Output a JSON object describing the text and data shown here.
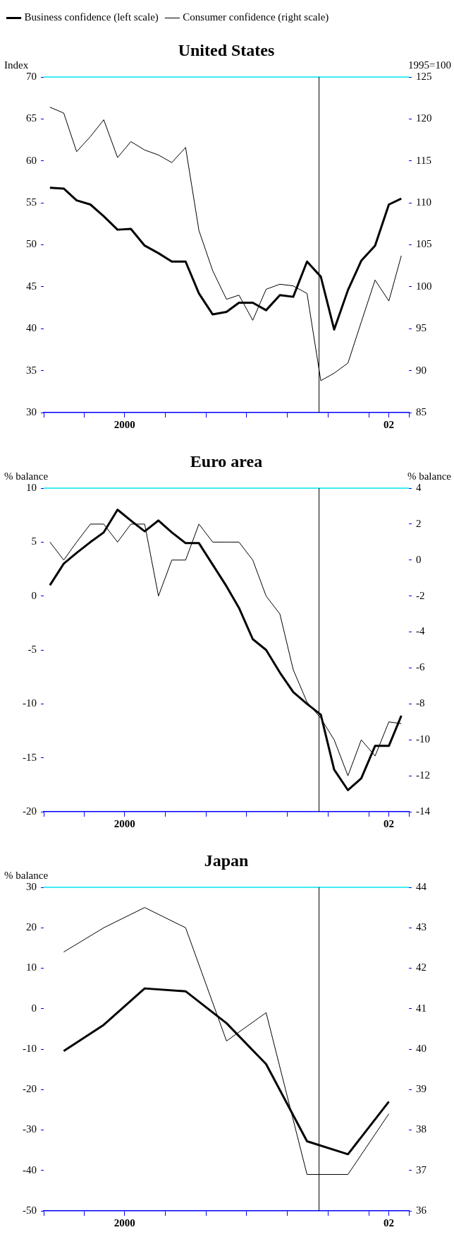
{
  "chart_data": [
    {
      "type": "line",
      "title": "United States",
      "ylabel": "Index",
      "y2label": "1995=100",
      "legend": "top",
      "x": [
        "2000-01-15",
        "2000-02-15",
        "2000-03-15",
        "2000-04-15",
        "2000-05-15",
        "2000-06-15",
        "2000-07-15",
        "2000-08-15",
        "2000-09-15",
        "2000-10-15",
        "2000-11-15",
        "2000-12-15",
        "2001-01-15",
        "2001-02-15",
        "2001-03-15",
        "2001-04-15",
        "2001-05-15",
        "2001-06-15",
        "2001-07-15",
        "2001-08-15",
        "2001-09-15",
        "2001-10-15",
        "2001-11-15",
        "2001-12-15",
        "2002-01-15",
        "2002-02-15",
        "2002-03-15"
      ],
      "xlim": [
        "2000-01",
        "2002-04"
      ],
      "xticks": [
        {
          "value": "2000-01",
          "label": null
        },
        {
          "value": "2000-04",
          "label": null
        },
        {
          "value": "2000-07",
          "label": "2000"
        },
        {
          "value": "2000-10",
          "label": null
        },
        {
          "value": "2001-01",
          "label": null
        },
        {
          "value": "2001-04",
          "label": null
        },
        {
          "value": "2001-07",
          "label": null
        },
        {
          "value": "2001-10",
          "label": null
        },
        {
          "value": "2002-01",
          "label": null
        },
        {
          "value": "2002-02-15",
          "label": "02"
        },
        {
          "value": "2002-04",
          "label": null
        }
      ],
      "ylim": [
        30,
        70
      ],
      "yticks": [
        30,
        35,
        40,
        45,
        50,
        55,
        60,
        65,
        70
      ],
      "y2lim": [
        85,
        125
      ],
      "y2ticks": [
        85,
        90,
        95,
        100,
        105,
        110,
        115,
        120,
        125
      ],
      "ref_lines": [
        {
          "axis": "x",
          "value": "2001-09-11",
          "color": "#000000"
        }
      ],
      "series": [
        {
          "name": "Business confidence (left scale)",
          "color": "#000000",
          "values": [
            56.8,
            56.7,
            55.3,
            54.8,
            53.4,
            51.8,
            51.9,
            49.9,
            49.0,
            48.0,
            48.0,
            44.2,
            41.7,
            42.0,
            43.1,
            43.1,
            42.2,
            44.0,
            43.8,
            48.0,
            46.2,
            39.9,
            44.6,
            48.1,
            49.9,
            54.8,
            55.5
          ]
        },
        {
          "name": "Consumer confidence (right scale)",
          "color": "#000000",
          "axis": "y2",
          "values": [
            121.4,
            120.7,
            116.1,
            117.9,
            119.9,
            115.4,
            117.3,
            116.3,
            115.7,
            114.8,
            116.6,
            106.7,
            101.9,
            98.5,
            99.0,
            96.0,
            99.7,
            100.3,
            100.1,
            99.2,
            88.8,
            89.7,
            90.9,
            95.8,
            100.8,
            98.3,
            103.7
          ]
        }
      ]
    },
    {
      "type": "line",
      "title": "Euro area",
      "ylabel": "% balance",
      "y2label": "% balance",
      "x": [
        "2000-01-15",
        "2000-02-15",
        "2000-03-15",
        "2000-04-15",
        "2000-05-15",
        "2000-06-15",
        "2000-07-15",
        "2000-08-15",
        "2000-09-15",
        "2000-10-15",
        "2000-11-15",
        "2000-12-15",
        "2001-01-15",
        "2001-02-15",
        "2001-03-15",
        "2001-04-15",
        "2001-05-15",
        "2001-06-15",
        "2001-07-15",
        "2001-08-15",
        "2001-09-15",
        "2001-10-15",
        "2001-11-15",
        "2001-12-15",
        "2002-01-15",
        "2002-02-15",
        "2002-03-15"
      ],
      "xlim": [
        "2000-01",
        "2002-04"
      ],
      "xticks": [
        {
          "value": "2000-01",
          "label": null
        },
        {
          "value": "2000-04",
          "label": null
        },
        {
          "value": "2000-07",
          "label": "2000"
        },
        {
          "value": "2000-10",
          "label": null
        },
        {
          "value": "2001-01",
          "label": null
        },
        {
          "value": "2001-04",
          "label": null
        },
        {
          "value": "2001-07",
          "label": null
        },
        {
          "value": "2001-10",
          "label": null
        },
        {
          "value": "2002-01",
          "label": null
        },
        {
          "value": "2002-02-15",
          "label": "02"
        },
        {
          "value": "2002-04",
          "label": null
        }
      ],
      "ylim": [
        -20,
        10
      ],
      "yticks": [
        -20,
        -15,
        -10,
        -5,
        0,
        5,
        10
      ],
      "y2lim": [
        -14,
        4
      ],
      "y2ticks": [
        -14,
        -12,
        -10,
        -8,
        -6,
        -4,
        -2,
        0,
        2,
        4
      ],
      "ref_lines": [
        {
          "axis": "x",
          "value": "2001-09-11",
          "color": "#000000"
        }
      ],
      "series": [
        {
          "color": "#000000",
          "values": [
            1.0,
            3.0,
            4.0,
            5.0,
            5.9,
            8.0,
            7.0,
            6.0,
            7.0,
            5.9,
            4.9,
            4.9,
            2.9,
            0.9,
            -1.1,
            -4.0,
            -5.0,
            -7.1,
            -8.9,
            -10.0,
            -11.0,
            -16.1,
            -18.0,
            -16.9,
            -13.9,
            -13.9,
            -11.1
          ]
        },
        {
          "color": "#000000",
          "axis": "y2",
          "values": [
            1.0,
            0.0,
            1.0,
            2.0,
            2.0,
            1.0,
            2.0,
            2.0,
            -2.0,
            0.0,
            0.0,
            2.0,
            1.0,
            1.0,
            1.0,
            0.0,
            -2.0,
            -3.0,
            -6.1,
            -7.9,
            -8.8,
            -10.0,
            -12.0,
            -10.0,
            -10.9,
            -9.0,
            -9.1
          ]
        }
      ]
    },
    {
      "type": "line",
      "title": "Japan",
      "ylabel": "% balance",
      "x": [
        "2000-02-15",
        "2000-05-15",
        "2000-08-15",
        "2000-11-15",
        "2001-02-15",
        "2001-05-15",
        "2001-08-15",
        "2001-11-15",
        "2002-02-15"
      ],
      "xlim": [
        "2000-01",
        "2002-04"
      ],
      "xticks": [
        {
          "value": "2000-01",
          "label": null
        },
        {
          "value": "2000-04",
          "label": null
        },
        {
          "value": "2000-07",
          "label": "2000"
        },
        {
          "value": "2000-10",
          "label": null
        },
        {
          "value": "2001-01",
          "label": null
        },
        {
          "value": "2001-04",
          "label": null
        },
        {
          "value": "2001-07",
          "label": null
        },
        {
          "value": "2001-10",
          "label": null
        },
        {
          "value": "2002-01",
          "label": null
        },
        {
          "value": "2002-02-15",
          "label": "02"
        },
        {
          "value": "2002-04",
          "label": null
        }
      ],
      "ylim": [
        -50,
        30
      ],
      "yticks": [
        -50,
        -40,
        -30,
        -20,
        -10,
        0,
        10,
        20,
        30
      ],
      "y2lim": [
        36,
        44
      ],
      "y2ticks": [
        36,
        37,
        38,
        39,
        40,
        41,
        42,
        43,
        44
      ],
      "ref_lines": [
        {
          "axis": "x",
          "value": "2001-09-11",
          "color": "#000000"
        }
      ],
      "series": [
        {
          "color": "#000000",
          "values": [
            -10.5,
            -4.0,
            5.0,
            4.3,
            -3.6,
            -13.7,
            -32.8,
            -36.0,
            -23.0
          ]
        },
        {
          "color": "#000000",
          "axis": "y2",
          "values": [
            42.4,
            43.0,
            43.5,
            43.0,
            40.2,
            40.9,
            36.9,
            36.9,
            38.4
          ]
        }
      ]
    }
  ]
}
